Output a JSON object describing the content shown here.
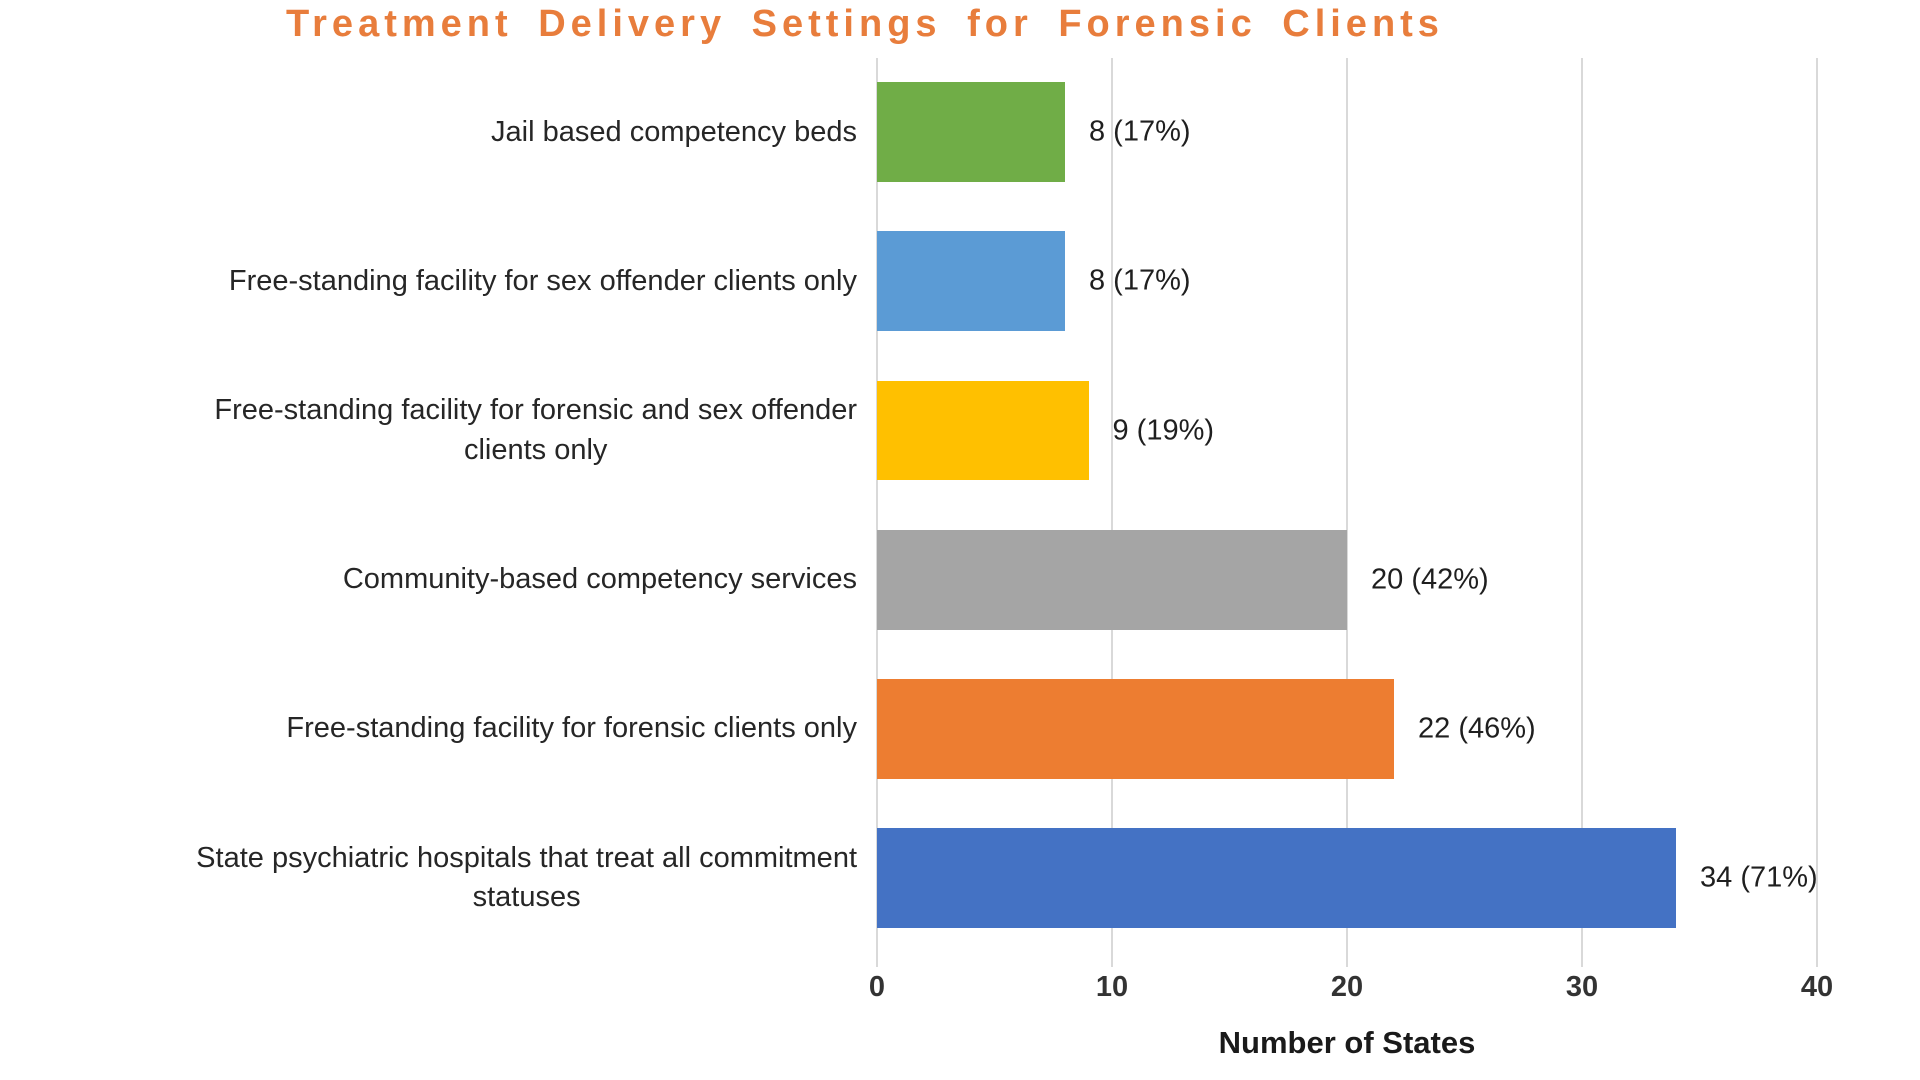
{
  "chart_data": {
    "type": "bar",
    "orientation": "horizontal",
    "title": "Treatment Delivery Settings for Forensic Clients",
    "xlabel": "Number of States",
    "xlim": [
      0,
      40
    ],
    "x_ticks": [
      0,
      10,
      20,
      30,
      40
    ],
    "grid": true,
    "legend": false,
    "categories": [
      "Jail based competency beds",
      "Free-standing facility for sex offender clients only",
      "Free-standing facility for forensic and sex offender\nclients only",
      "Community-based competency services",
      "Free-standing facility for forensic clients only",
      "State psychiatric hospitals that treat all commitment\nstatuses"
    ],
    "values": [
      8,
      8,
      9,
      20,
      22,
      34
    ],
    "percentages": [
      "17%",
      "17%",
      "19%",
      "42%",
      "46%",
      "71%"
    ],
    "value_labels": [
      "8 (17%)",
      "8 (17%)",
      "9 (19%)",
      "20 (42%)",
      "22 (46%)",
      "34 (71%)"
    ],
    "bar_colors": [
      "#70AD47",
      "#5B9BD5",
      "#FFC000",
      "#A5A5A5",
      "#ED7D31",
      "#4472C4"
    ]
  },
  "styles": {
    "title_color": "#E87D3C",
    "gridline_color": "#D9D9D9",
    "label_color": "#262626"
  }
}
